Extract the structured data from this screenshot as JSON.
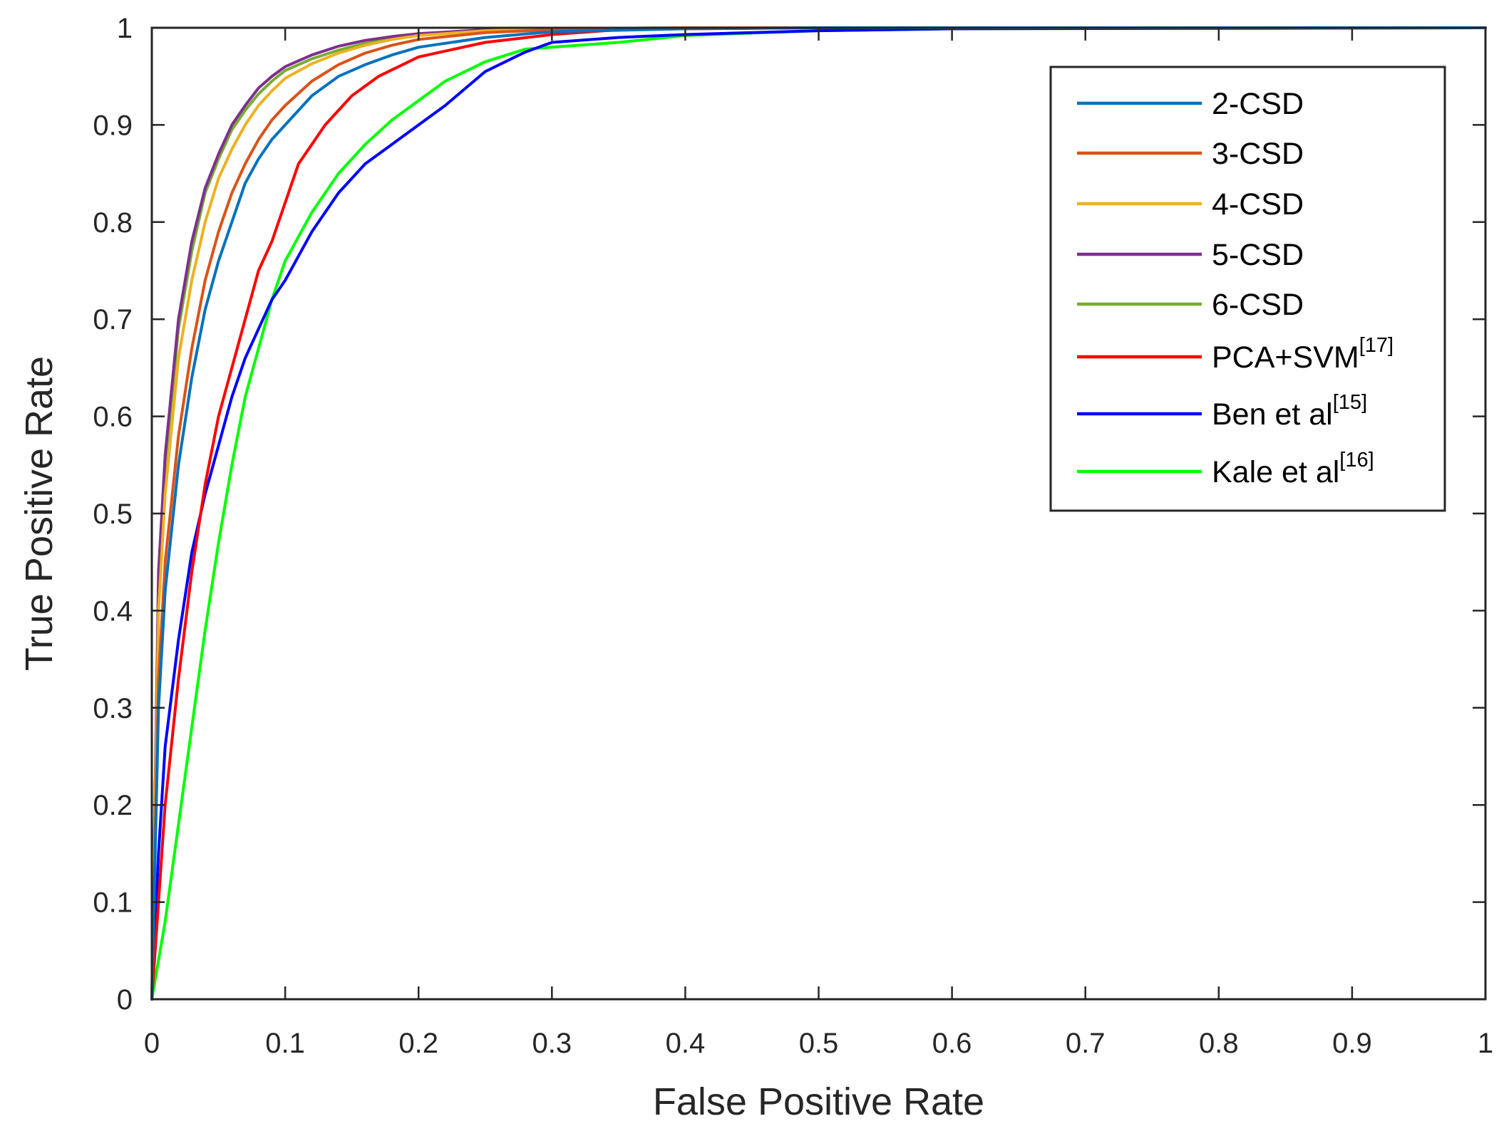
{
  "chart_data": {
    "type": "line",
    "title": "",
    "xlabel": "False Positive Rate",
    "ylabel": "True Positive Rate",
    "xlim": [
      0,
      1
    ],
    "ylim": [
      0,
      1
    ],
    "xticks": [
      "0",
      "0.1",
      "0.2",
      "0.3",
      "0.4",
      "0.5",
      "0.6",
      "0.7",
      "0.8",
      "0.9",
      "1"
    ],
    "yticks": [
      "0",
      "0.1",
      "0.2",
      "0.3",
      "0.4",
      "0.5",
      "0.6",
      "0.7",
      "0.8",
      "0.9",
      "1"
    ],
    "grid": false,
    "legend_position": "top-right",
    "series": [
      {
        "name": "2-CSD",
        "sup": "",
        "color": "#0072BD",
        "x": [
          0,
          0.005,
          0.01,
          0.02,
          0.03,
          0.04,
          0.05,
          0.06,
          0.07,
          0.08,
          0.09,
          0.1,
          0.12,
          0.14,
          0.16,
          0.18,
          0.2,
          0.25,
          0.3,
          0.4,
          0.5,
          1
        ],
        "y": [
          0,
          0.3,
          0.42,
          0.55,
          0.64,
          0.71,
          0.76,
          0.8,
          0.84,
          0.865,
          0.885,
          0.9,
          0.93,
          0.95,
          0.962,
          0.972,
          0.98,
          0.99,
          0.996,
          0.999,
          1,
          1
        ]
      },
      {
        "name": "3-CSD",
        "sup": "",
        "color": "#D95319",
        "x": [
          0,
          0.005,
          0.01,
          0.02,
          0.03,
          0.04,
          0.05,
          0.06,
          0.07,
          0.08,
          0.09,
          0.1,
          0.12,
          0.14,
          0.16,
          0.18,
          0.2,
          0.25,
          0.3,
          0.4,
          0.5,
          1
        ],
        "y": [
          0,
          0.33,
          0.45,
          0.58,
          0.67,
          0.74,
          0.79,
          0.83,
          0.86,
          0.885,
          0.905,
          0.92,
          0.945,
          0.962,
          0.974,
          0.982,
          0.988,
          0.995,
          0.998,
          1,
          1,
          1
        ]
      },
      {
        "name": "4-CSD",
        "sup": "",
        "color": "#EDB120",
        "x": [
          0,
          0.005,
          0.01,
          0.02,
          0.03,
          0.04,
          0.05,
          0.06,
          0.07,
          0.08,
          0.09,
          0.1,
          0.12,
          0.14,
          0.16,
          0.18,
          0.2,
          0.25,
          0.3,
          0.4,
          0.5,
          1
        ],
        "y": [
          0,
          0.4,
          0.52,
          0.66,
          0.74,
          0.8,
          0.845,
          0.875,
          0.9,
          0.92,
          0.935,
          0.948,
          0.963,
          0.974,
          0.982,
          0.988,
          0.992,
          0.997,
          0.999,
          1,
          1,
          1
        ]
      },
      {
        "name": "5-CSD",
        "sup": "",
        "color": "#7E2F8E",
        "x": [
          0,
          0.005,
          0.01,
          0.02,
          0.03,
          0.04,
          0.05,
          0.06,
          0.07,
          0.08,
          0.09,
          0.1,
          0.12,
          0.14,
          0.16,
          0.18,
          0.2,
          0.25,
          0.3,
          0.4,
          0.5,
          1
        ],
        "y": [
          0,
          0.44,
          0.56,
          0.7,
          0.78,
          0.835,
          0.87,
          0.9,
          0.92,
          0.938,
          0.95,
          0.96,
          0.972,
          0.981,
          0.987,
          0.991,
          0.994,
          0.998,
          0.999,
          1,
          1,
          1
        ]
      },
      {
        "name": "6-CSD",
        "sup": "",
        "color": "#77AC30",
        "x": [
          0,
          0.005,
          0.01,
          0.02,
          0.03,
          0.04,
          0.05,
          0.06,
          0.07,
          0.08,
          0.09,
          0.1,
          0.12,
          0.14,
          0.16,
          0.18,
          0.2,
          0.25,
          0.3,
          0.4,
          0.5,
          1
        ],
        "y": [
          0,
          0.43,
          0.55,
          0.69,
          0.77,
          0.83,
          0.865,
          0.895,
          0.915,
          0.932,
          0.945,
          0.956,
          0.968,
          0.977,
          0.984,
          0.989,
          0.993,
          0.997,
          0.999,
          1,
          1,
          1
        ]
      },
      {
        "name": "PCA+SVM",
        "sup": "[17]",
        "color": "#FF0000",
        "x": [
          0,
          0.005,
          0.01,
          0.02,
          0.03,
          0.04,
          0.05,
          0.06,
          0.07,
          0.08,
          0.09,
          0.1,
          0.11,
          0.12,
          0.13,
          0.15,
          0.17,
          0.2,
          0.25,
          0.3,
          0.35,
          0.4,
          0.5,
          1
        ],
        "y": [
          0,
          0.1,
          0.2,
          0.33,
          0.44,
          0.53,
          0.6,
          0.65,
          0.7,
          0.75,
          0.78,
          0.82,
          0.86,
          0.88,
          0.9,
          0.93,
          0.95,
          0.97,
          0.985,
          0.993,
          0.998,
          0.999,
          1,
          1
        ]
      },
      {
        "name": "Ben et al",
        "sup": "[15]",
        "color": "#0000FF",
        "x": [
          0,
          0.005,
          0.01,
          0.02,
          0.03,
          0.04,
          0.05,
          0.06,
          0.07,
          0.08,
          0.09,
          0.1,
          0.12,
          0.14,
          0.16,
          0.18,
          0.2,
          0.22,
          0.25,
          0.28,
          0.3,
          0.35,
          0.4,
          0.5,
          0.6,
          1
        ],
        "y": [
          0,
          0.15,
          0.26,
          0.37,
          0.46,
          0.52,
          0.57,
          0.62,
          0.66,
          0.69,
          0.72,
          0.74,
          0.79,
          0.83,
          0.86,
          0.88,
          0.9,
          0.92,
          0.955,
          0.975,
          0.985,
          0.99,
          0.993,
          0.997,
          0.999,
          1
        ]
      },
      {
        "name": "Kale et al",
        "sup": "[16]",
        "color": "#00FF00",
        "x": [
          0,
          0.005,
          0.01,
          0.02,
          0.03,
          0.04,
          0.05,
          0.06,
          0.07,
          0.08,
          0.09,
          0.1,
          0.12,
          0.14,
          0.16,
          0.18,
          0.2,
          0.22,
          0.25,
          0.28,
          0.3,
          0.35,
          0.4,
          0.5,
          0.6,
          1
        ],
        "y": [
          0,
          0.04,
          0.08,
          0.18,
          0.28,
          0.38,
          0.47,
          0.55,
          0.62,
          0.67,
          0.72,
          0.76,
          0.81,
          0.85,
          0.88,
          0.905,
          0.925,
          0.945,
          0.965,
          0.978,
          0.98,
          0.985,
          0.992,
          0.997,
          0.999,
          1
        ]
      }
    ]
  }
}
